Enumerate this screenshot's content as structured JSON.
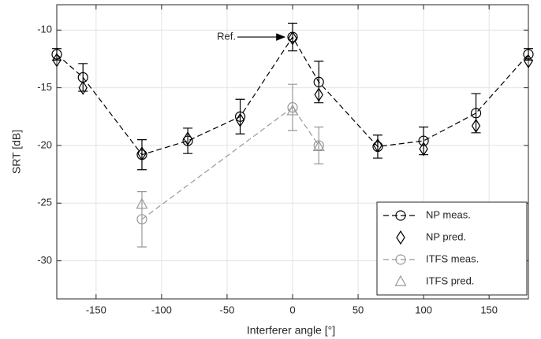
{
  "chart_data": {
    "type": "line",
    "xlabel": "Interferer angle [°]",
    "ylabel": "SRT [dB]",
    "annotation": "Ref.",
    "xlim": [
      -180,
      180
    ],
    "ylim": [
      -33.3,
      -7.8
    ],
    "xticks": [
      -150,
      -100,
      -50,
      0,
      50,
      100,
      150
    ],
    "yticks": [
      -30,
      -25,
      -20,
      -15,
      -10
    ],
    "grid": true,
    "legend": "lower right",
    "series": [
      {
        "name": "NP meas.",
        "color": "#000000",
        "marker": "circle",
        "linestyle": "dashed",
        "x": [
          -180,
          -160,
          -115,
          -80,
          -40,
          0,
          20,
          65,
          100,
          140,
          180
        ],
        "values": [
          -12.1,
          -14.1,
          -20.8,
          -19.6,
          -17.5,
          -10.6,
          -14.5,
          -20.1,
          -19.6,
          -17.2,
          -12.1
        ],
        "errors": [
          0.5,
          1.2,
          1.3,
          1.1,
          1.5,
          1.2,
          1.8,
          1.0,
          1.2,
          1.7,
          0.5
        ]
      },
      {
        "name": "NP pred.",
        "color": "#000000",
        "marker": "diamond",
        "linestyle": "none",
        "x": [
          -180,
          -160,
          -115,
          -80,
          -40,
          0,
          20,
          65,
          100,
          140,
          180
        ],
        "values": [
          -12.6,
          -15.0,
          -20.7,
          -19.4,
          -17.8,
          -10.7,
          -15.6,
          -20.0,
          -20.3,
          -18.3,
          -12.7
        ]
      },
      {
        "name": "ITFS meas.",
        "color": "#999999",
        "marker": "circle",
        "linestyle": "dashed",
        "x": [
          -115,
          0,
          20
        ],
        "values": [
          -26.4,
          -16.7,
          -20.0
        ],
        "errors": [
          2.4,
          2.0,
          1.6
        ]
      },
      {
        "name": "ITFS pred.",
        "color": "#999999",
        "marker": "triangle",
        "linestyle": "none",
        "x": [
          -115,
          0,
          20
        ],
        "values": [
          -25.1,
          -17.0,
          -20.1
        ]
      }
    ]
  }
}
